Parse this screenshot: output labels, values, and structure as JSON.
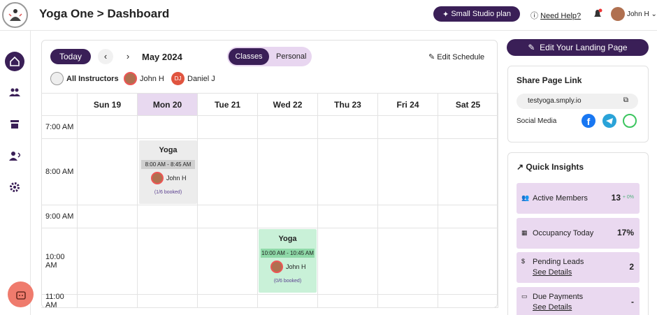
{
  "header": {
    "title": "Yoga One > Dashboard",
    "plan_button": "Small Studio plan",
    "help": "Need Help?",
    "user": "John H"
  },
  "toolbar": {
    "today": "Today",
    "month": "May 2024",
    "views": [
      "Classes",
      "Personal"
    ],
    "edit_schedule": "Edit Schedule"
  },
  "instructors": {
    "all": "All Instructors",
    "people": [
      {
        "name": "John H"
      },
      {
        "name": "Daniel J",
        "initials": "DJ"
      }
    ]
  },
  "calendar": {
    "days": [
      "Sun 19",
      "Mon 20",
      "Tue 21",
      "Wed 22",
      "Thu 23",
      "Fri 24",
      "Sat 25"
    ],
    "times": [
      "7:00 AM",
      "8:00 AM",
      "9:00 AM",
      "10:00 AM",
      "11:00 AM"
    ],
    "events": [
      {
        "title": "Yoga",
        "time": "8:00 AM - 8:45 AM",
        "instructor": "John H",
        "booked": "(1/6 booked)"
      },
      {
        "title": "Yoga",
        "time": "10:00 AM - 10:45 AM",
        "instructor": "John H",
        "booked": "(0/6 booked)"
      }
    ]
  },
  "panel": {
    "edit_landing": "Edit Your Landing Page",
    "share": {
      "title": "Share Page Link",
      "url": "testyoga.smply.io",
      "social": "Social Media"
    },
    "insights": {
      "title": "Quick Insights",
      "items": [
        {
          "label": "Active Members",
          "value": "13",
          "change": "+ 0%"
        },
        {
          "label": "Occupancy Today",
          "value": "17%"
        },
        {
          "label": "Pending Leads",
          "value": "2",
          "link": "See Details"
        },
        {
          "label": "Due Payments",
          "value": "-",
          "link": "See Details"
        }
      ]
    }
  }
}
